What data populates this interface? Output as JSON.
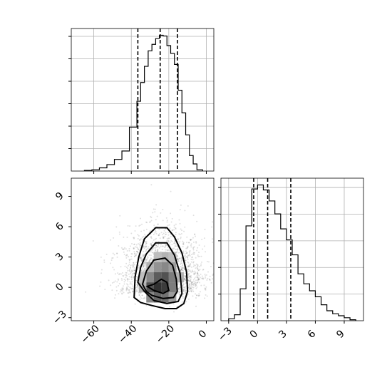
{
  "chart_data": [
    {
      "type": "histogram",
      "panel": "top-left",
      "variable_axis": "x",
      "x_range": [
        -72,
        4
      ],
      "x_ticks": [
        -60,
        -40,
        -20,
        0
      ],
      "y_ticks_count": 6,
      "y_tick_labels_shown": false,
      "x_tick_labels_shown": false,
      "grid": true,
      "bins": {
        "edges": [
          -65,
          -61,
          -57,
          -53,
          -49,
          -45,
          -41,
          -37,
          -35,
          -33,
          -31,
          -29,
          -27,
          -25,
          -23,
          -21,
          -19,
          -17,
          -15,
          -13,
          -11,
          -9,
          -7,
          -5,
          -2
        ],
        "counts": [
          1,
          2,
          5,
          10,
          18,
          31,
          68,
          108,
          137,
          162,
          186,
          196,
          205,
          210,
          209,
          194,
          182,
          165,
          125,
          90,
          56,
          24,
          11,
          2
        ]
      },
      "quantiles": [
        -36.5,
        -24.6,
        -15.4
      ]
    },
    {
      "type": "histogram",
      "panel": "bottom-right",
      "variable_axis": "x",
      "x_range": [
        -3.8,
        11
      ],
      "x_ticks": [
        -3,
        0,
        3,
        6,
        9
      ],
      "x_tick_labels": [
        "−3",
        "0",
        "3",
        "6",
        "9"
      ],
      "y_ticks_count": 5,
      "y_tick_labels_shown": false,
      "grid": true,
      "bins": {
        "edges": [
          -3.0,
          -2.4,
          -1.8,
          -1.2,
          -0.6,
          0.0,
          0.6,
          1.2,
          1.8,
          2.4,
          3.0,
          3.6,
          4.2,
          4.8,
          5.4,
          6.0,
          6.6,
          7.2,
          7.8,
          8.4,
          9.0,
          9.6,
          10.2
        ],
        "counts": [
          2,
          6,
          32,
          95,
          132,
          136,
          131,
          120,
          107,
          92,
          81,
          66,
          47,
          37,
          30,
          24,
          16,
          10,
          7,
          5,
          3,
          1
        ]
      },
      "quantiles": [
        -0.4,
        1.05,
        3.45
      ]
    },
    {
      "type": "scatter_density_contour",
      "panel": "bottom-left",
      "x_range": [
        -72,
        4
      ],
      "y_range": [
        -3.3,
        10.8
      ],
      "x_ticks": [
        -60,
        -40,
        -20,
        0
      ],
      "x_tick_labels": [
        "−60",
        "−40",
        "−20",
        "0"
      ],
      "y_ticks": [
        -3,
        0,
        3,
        6,
        9
      ],
      "y_tick_labels": [
        "−3",
        "0",
        "3",
        "6",
        "9"
      ],
      "density_center": [
        -23,
        0.4
      ],
      "contours": [
        [
          [
            -38.5,
            -1.0
          ],
          [
            -38,
            1.0
          ],
          [
            -36,
            3.0
          ],
          [
            -33,
            4.8
          ],
          [
            -27,
            5.9
          ],
          [
            -21,
            5.9
          ],
          [
            -17,
            5.0
          ],
          [
            -13,
            3.4
          ],
          [
            -10.5,
            1.5
          ],
          [
            -10,
            -0.4
          ],
          [
            -12,
            -1.6
          ],
          [
            -16,
            -2.1
          ],
          [
            -22,
            -2.1
          ],
          [
            -29,
            -1.8
          ],
          [
            -35,
            -1.5
          ]
        ],
        [
          [
            -36.5,
            0.5
          ],
          [
            -35,
            2.0
          ],
          [
            -32,
            3.3
          ],
          [
            -27,
            4.4
          ],
          [
            -21,
            4.4
          ],
          [
            -17,
            3.2
          ],
          [
            -14,
            1.4
          ],
          [
            -13,
            -0.6
          ],
          [
            -15,
            -1.4
          ],
          [
            -21,
            -1.6
          ],
          [
            -28,
            -1.3
          ],
          [
            -33,
            -0.4
          ]
        ],
        [
          [
            -34,
            0.3
          ],
          [
            -32,
            1.6
          ],
          [
            -28,
            2.7
          ],
          [
            -22,
            2.9
          ],
          [
            -18,
            2.2
          ],
          [
            -16,
            0.8
          ],
          [
            -15.5,
            -0.4
          ],
          [
            -17.5,
            -1.0
          ],
          [
            -23,
            -1.1
          ],
          [
            -29,
            -0.8
          ],
          [
            -32,
            -0.4
          ]
        ],
        [
          [
            -31.5,
            0.1
          ],
          [
            -28,
            0.3
          ],
          [
            -24,
            0.8
          ],
          [
            -21,
            0.5
          ],
          [
            -20,
            -0.3
          ],
          [
            -23,
            -0.6
          ],
          [
            -28,
            -0.3
          ]
        ]
      ],
      "density_cells": [
        {
          "x": -30,
          "y": -1,
          "level": 0.55
        },
        {
          "x": -26,
          "y": -1,
          "level": 0.7
        },
        {
          "x": -22,
          "y": -1,
          "level": 0.65
        },
        {
          "x": -18,
          "y": -1,
          "level": 0.45
        },
        {
          "x": -30,
          "y": 0,
          "level": 0.8
        },
        {
          "x": -26,
          "y": 0,
          "level": 0.95
        },
        {
          "x": -22,
          "y": 0,
          "level": 0.9
        },
        {
          "x": -18,
          "y": 0,
          "level": 0.6
        },
        {
          "x": -30,
          "y": 1,
          "level": 0.55
        },
        {
          "x": -26,
          "y": 1,
          "level": 0.75
        },
        {
          "x": -22,
          "y": 1,
          "level": 0.8
        },
        {
          "x": -18,
          "y": 1,
          "level": 0.6
        },
        {
          "x": -14,
          "y": 1,
          "level": 0.35
        },
        {
          "x": -26,
          "y": 2,
          "level": 0.5
        },
        {
          "x": -22,
          "y": 2,
          "level": 0.55
        },
        {
          "x": -18,
          "y": 2,
          "level": 0.45
        },
        {
          "x": -22,
          "y": 3,
          "level": 0.35
        },
        {
          "x": -18,
          "y": 3,
          "level": 0.3
        },
        {
          "x": -34,
          "y": 0,
          "level": 0.35
        },
        {
          "x": -34,
          "y": 1,
          "level": 0.3
        },
        {
          "x": -30,
          "y": 2,
          "level": 0.35
        },
        {
          "x": -26,
          "y": 3,
          "level": 0.3
        }
      ]
    }
  ]
}
